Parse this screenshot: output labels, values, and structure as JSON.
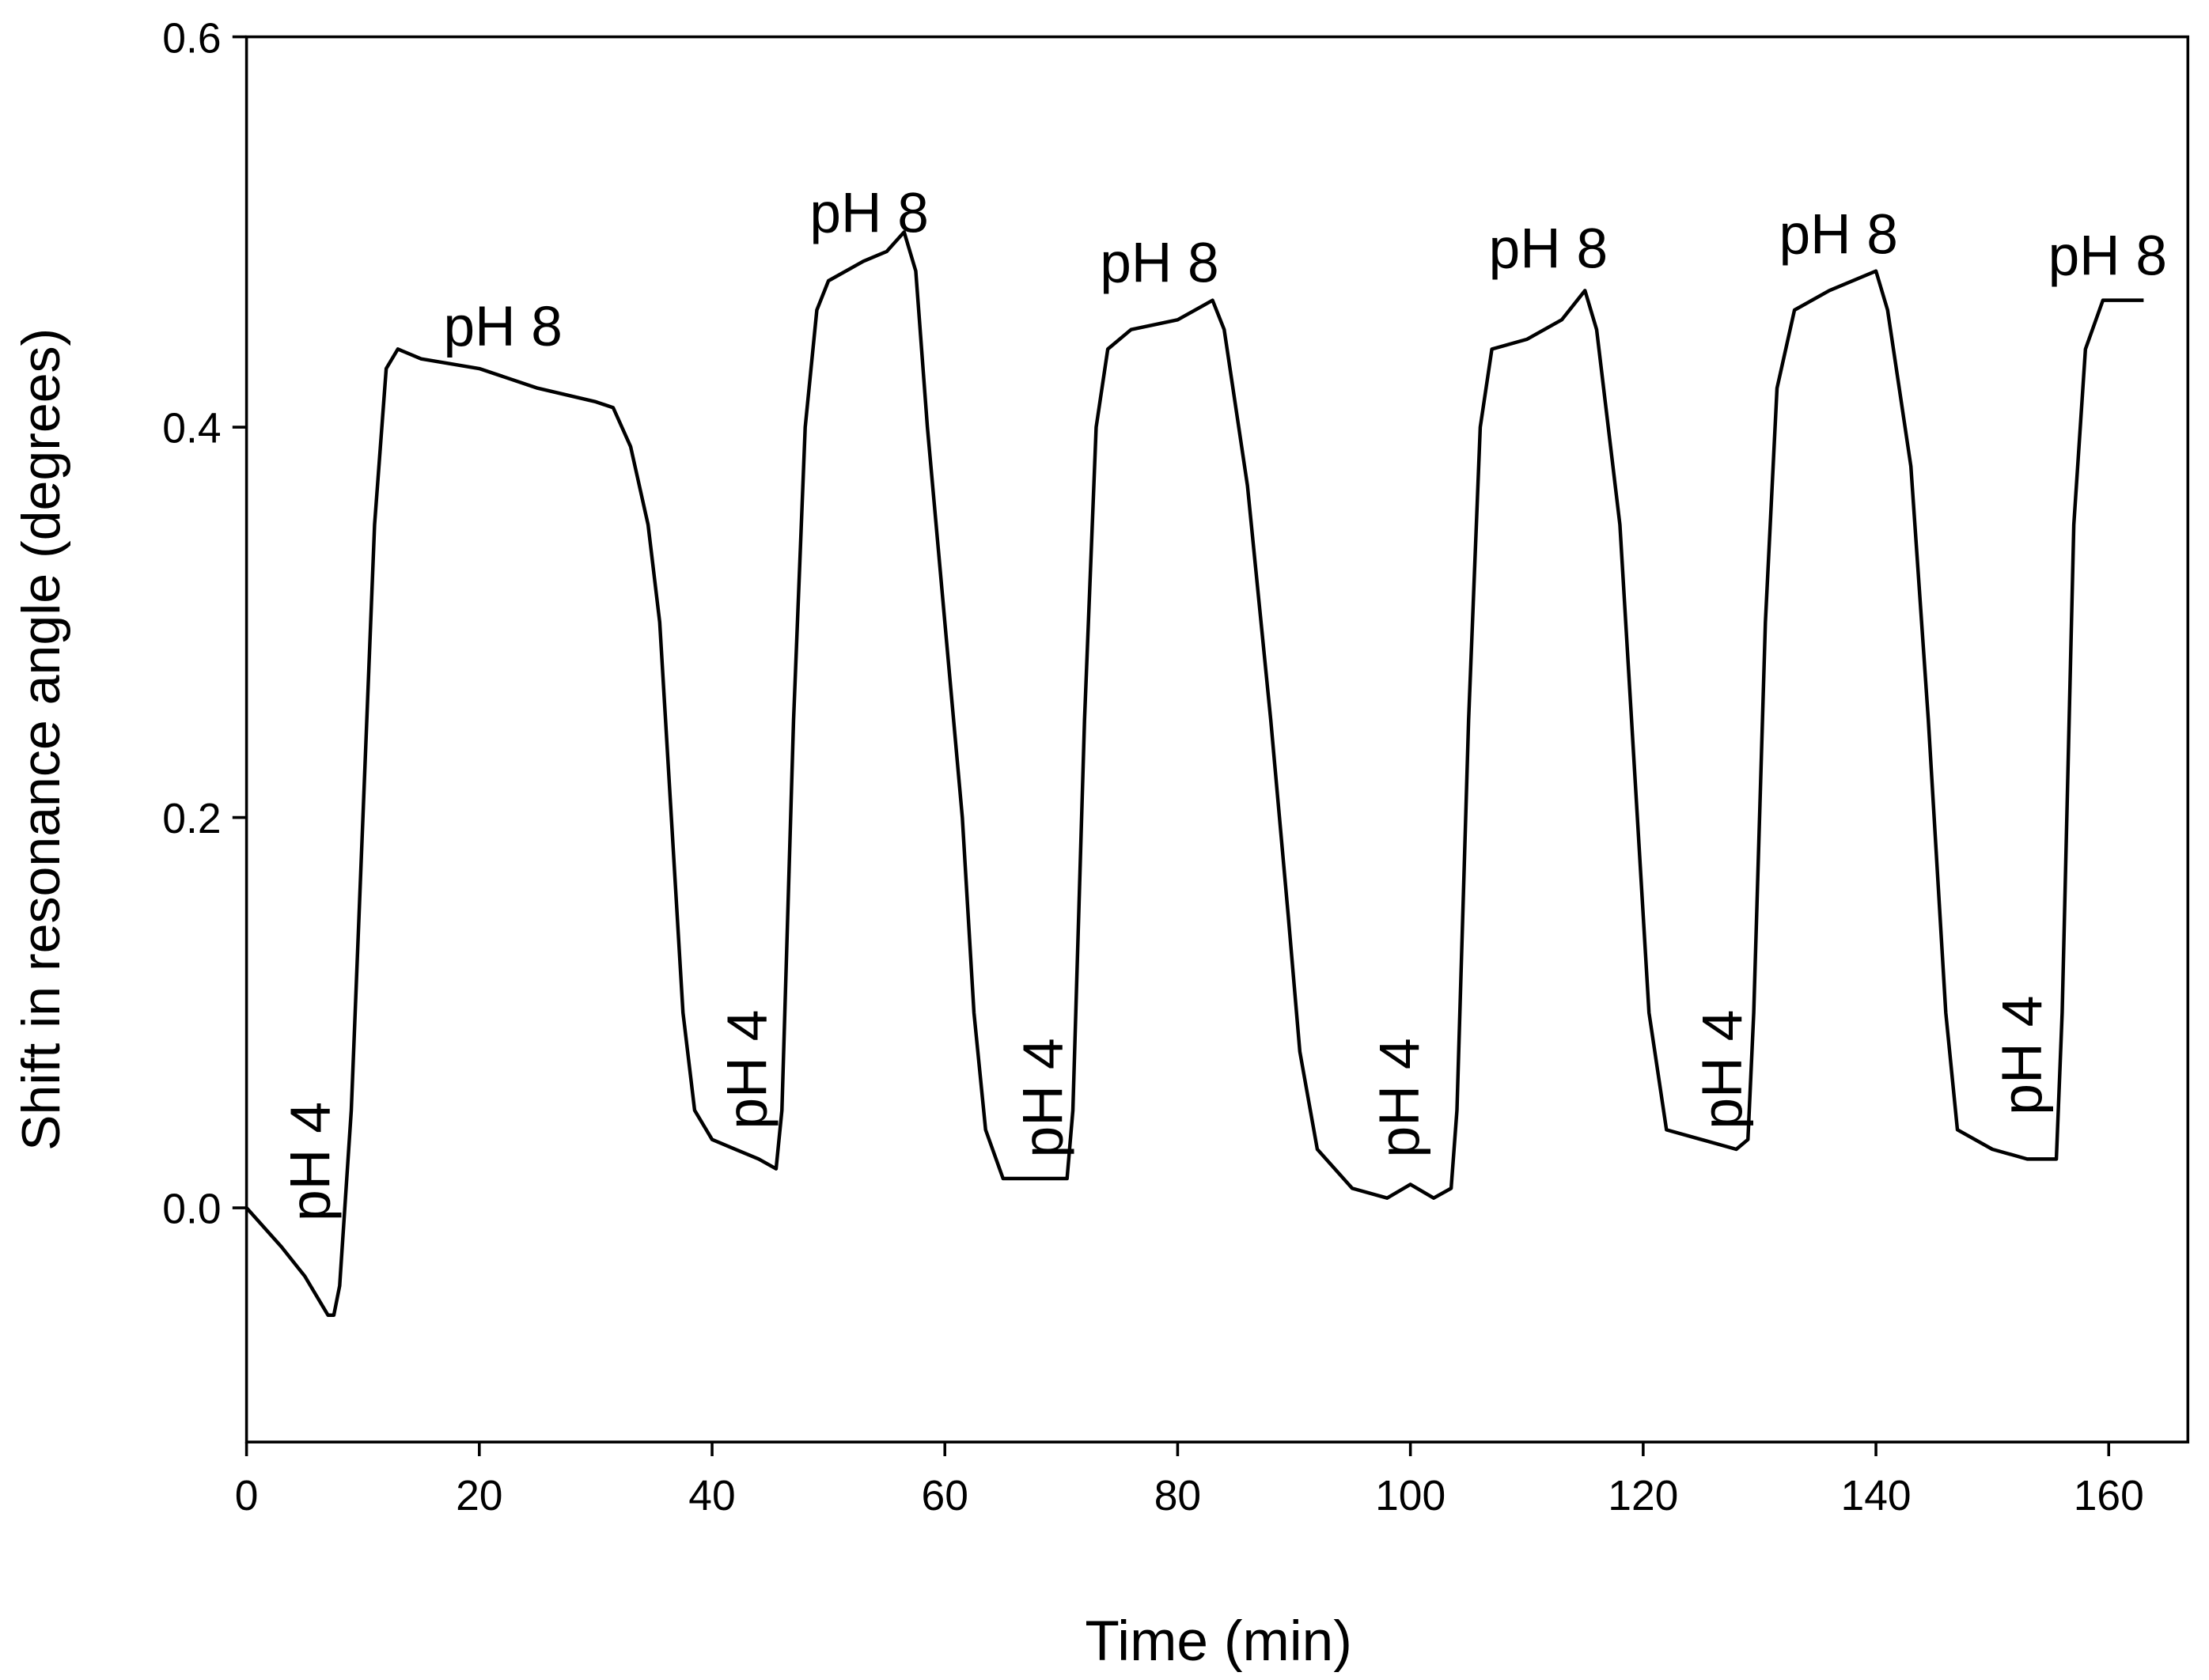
{
  "chart_data": {
    "type": "line",
    "x_label": "Time (min)",
    "y_label": "Shift in resonance angle (degrees)",
    "xlim": [
      0,
      166.8
    ],
    "ylim": [
      -0.12,
      0.6
    ],
    "xticks": [
      0,
      20,
      40,
      60,
      80,
      100,
      120,
      140,
      160
    ],
    "yticks": [
      {
        "value": 0,
        "label": "0.0"
      },
      0.2,
      0.4,
      0.6
    ],
    "grid": false,
    "series": [
      {
        "color": "#000000",
        "x": [
          0,
          3,
          5,
          7,
          7.5,
          8,
          9,
          10,
          11,
          12,
          13,
          15,
          20,
          25,
          30,
          31.5,
          33,
          34.5,
          35.5,
          36.5,
          37.5,
          38.5,
          40,
          42,
          44,
          45.5,
          46,
          47,
          48,
          49,
          50,
          53,
          55,
          56.5,
          57.5,
          58.5,
          60,
          61.5,
          62.5,
          63.5,
          65,
          68,
          70.5,
          71,
          72,
          73,
          74,
          76,
          80,
          83,
          84,
          86,
          88,
          89.5,
          90.5,
          92,
          95,
          98,
          100,
          102,
          103.5,
          104,
          105,
          106,
          107,
          110,
          113,
          115,
          116,
          118,
          119.5,
          120.5,
          122,
          125,
          128,
          129,
          129.5,
          130.5,
          131.5,
          133,
          136,
          140,
          141,
          143,
          144.5,
          146,
          147,
          150,
          153,
          155.5,
          156,
          157,
          158,
          159.5,
          161,
          163
        ],
        "values": [
          0,
          -0.02,
          -0.035,
          -0.055,
          -0.055,
          -0.04,
          0.05,
          0.2,
          0.35,
          0.43,
          0.44,
          0.435,
          0.43,
          0.42,
          0.413,
          0.41,
          0.39,
          0.35,
          0.3,
          0.2,
          0.1,
          0.05,
          0.035,
          0.03,
          0.025,
          0.02,
          0.05,
          0.25,
          0.4,
          0.46,
          0.475,
          0.485,
          0.49,
          0.5,
          0.48,
          0.4,
          0.3,
          0.2,
          0.1,
          0.04,
          0.015,
          0.015,
          0.015,
          0.05,
          0.25,
          0.4,
          0.44,
          0.45,
          0.455,
          0.465,
          0.45,
          0.37,
          0.25,
          0.15,
          0.08,
          0.03,
          0.01,
          0.005,
          0.012,
          0.005,
          0.01,
          0.05,
          0.25,
          0.4,
          0.44,
          0.445,
          0.455,
          0.47,
          0.45,
          0.35,
          0.2,
          0.1,
          0.04,
          0.035,
          0.03,
          0.035,
          0.1,
          0.3,
          0.42,
          0.46,
          0.47,
          0.48,
          0.46,
          0.38,
          0.25,
          0.1,
          0.04,
          0.03,
          0.025,
          0.025,
          0.1,
          0.35,
          0.44,
          0.465,
          0.465,
          0.465
        ]
      }
    ],
    "annotations": [
      "pH 4",
      "pH 4",
      "pH 4",
      "pH 4",
      "pH 4",
      "pH 4",
      "pH 8",
      "pH 8",
      "pH 8",
      "pH 8",
      "pH 8",
      "pH 8"
    ]
  }
}
